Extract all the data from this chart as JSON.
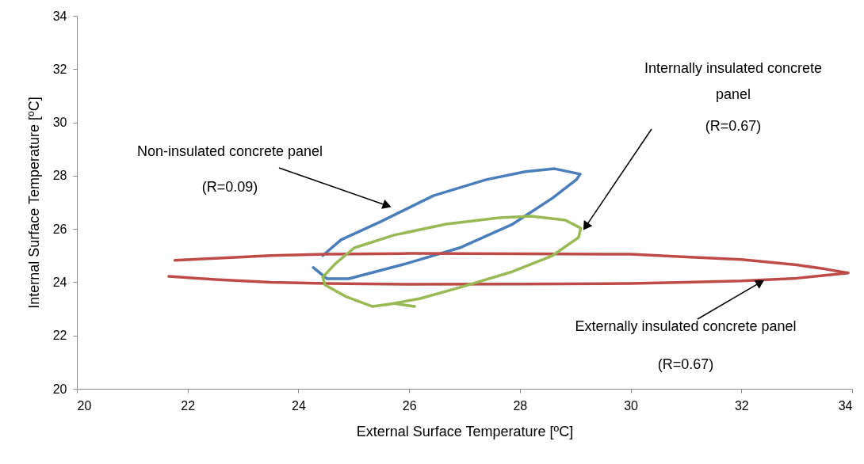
{
  "chart_data": {
    "type": "line",
    "xlabel": "External Surface Temperature [ºC]",
    "ylabel": "Internal Surface Temperature [ºC]",
    "xlim": [
      20,
      34
    ],
    "ylim": [
      20,
      34
    ],
    "xticks": [
      20,
      22,
      24,
      26,
      28,
      30,
      32,
      34
    ],
    "yticks": [
      20,
      22,
      24,
      26,
      28,
      30,
      32,
      34
    ],
    "marker": "none",
    "line_style": "solid",
    "series": [
      {
        "color": "#4a7ebb",
        "x": [
          24.27,
          24.52,
          24.91,
          25.95,
          26.91,
          27.87,
          28.59,
          29.02,
          29.09,
          28.63,
          28.1,
          27.39,
          26.44,
          25.48,
          24.77,
          24.44
        ],
        "values": [
          24.55,
          24.13,
          24.13,
          24.7,
          25.29,
          26.18,
          27.16,
          27.85,
          28.06,
          28.26,
          28.15,
          27.85,
          27.25,
          26.27,
          25.59,
          25.0
        ]
      },
      {
        "color": "#be4b48",
        "x": [
          21.77,
          22.5,
          23.5,
          24.5,
          26,
          28,
          30,
          31,
          32,
          33,
          33.5,
          33.93,
          33,
          32,
          31,
          30,
          28,
          26,
          24.5,
          23.5,
          22.5,
          21.66
        ],
        "values": [
          24.82,
          24.9,
          25.0,
          25.05,
          25.08,
          25.07,
          25.05,
          24.95,
          24.85,
          24.65,
          24.5,
          24.35,
          24.15,
          24.05,
          24.0,
          23.95,
          23.93,
          23.92,
          23.95,
          24.0,
          24.1,
          24.22
        ]
      },
      {
        "color": "#98b954",
        "x": [
          26.1,
          25.73,
          25.34,
          24.87,
          24.48,
          24.44,
          24.67,
          25.01,
          25.73,
          26.67,
          27.63,
          28.2,
          28.82,
          29.1,
          29.06,
          28.59,
          27.87,
          26.91,
          26.2,
          25.58
        ],
        "values": [
          23.09,
          23.2,
          23.09,
          23.45,
          23.9,
          24.19,
          24.7,
          25.29,
          25.77,
          26.18,
          26.42,
          26.48,
          26.33,
          26.03,
          25.68,
          25.0,
          24.4,
          23.8,
          23.39,
          23.15
        ]
      }
    ],
    "annotations": [
      "Non-insulated concrete panel",
      "(R=0.09)",
      "Internally insulated concrete",
      "panel",
      "(R=0.67)",
      {
        "text": "Externally insulated concrete panel",
        "x": 32.43,
        "y": 24.1
      },
      "(R=0.67)"
    ]
  }
}
